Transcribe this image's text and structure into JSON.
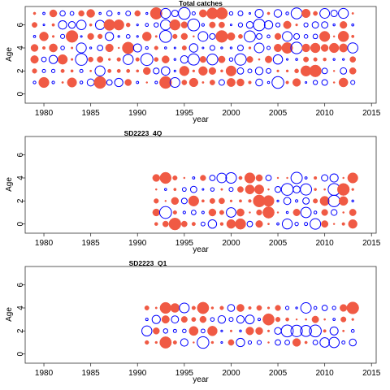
{
  "chart_data": [
    {
      "type": "scatter",
      "title": "Total catches",
      "xlabel": "year",
      "ylabel": "Age",
      "xlim": [
        1978,
        2015.5
      ],
      "ylim": [
        -0.8,
        7.6
      ],
      "xticks": [
        1980,
        1985,
        1990,
        1995,
        2000,
        2005,
        2010,
        2015
      ],
      "yticks": [
        0,
        2,
        4,
        6
      ],
      "x_start": 1979,
      "x_end": 2013,
      "ages": [
        1,
        2,
        3,
        4,
        5,
        6,
        7
      ],
      "marker": "bubble",
      "positive_color": "#0000ff",
      "negative_color": "#f05a44",
      "note": "bubble size = residual magnitude; open blue = positive, filled red = negative"
    },
    {
      "type": "scatter",
      "title": "SD2223_4Q",
      "xlabel": "year",
      "ylabel": "Age",
      "xlim": [
        1978,
        2015.5
      ],
      "ylim": [
        -0.8,
        7.6
      ],
      "xticks": [
        1980,
        1985,
        1990,
        1995,
        2000,
        2005,
        2010,
        2015
      ],
      "yticks": [
        0,
        2,
        4,
        6
      ],
      "x_start": 1992,
      "x_end": 2013,
      "ages": [
        0,
        1,
        2,
        3,
        4
      ],
      "marker": "bubble",
      "positive_color": "#0000ff",
      "negative_color": "#f05a44"
    },
    {
      "type": "scatter",
      "title": "SD2223_Q1",
      "xlabel": "year",
      "ylabel": "Age",
      "xlim": [
        1978,
        2015.5
      ],
      "ylim": [
        -0.8,
        7.6
      ],
      "xticks": [
        1980,
        1985,
        1990,
        1995,
        2000,
        2005,
        2010,
        2015
      ],
      "yticks": [
        0,
        2,
        4,
        6
      ],
      "x_start": 1991,
      "x_end": 2013,
      "ages": [
        1,
        2,
        3,
        4
      ],
      "marker": "bubble",
      "positive_color": "#0000ff",
      "negative_color": "#f05a44"
    }
  ]
}
